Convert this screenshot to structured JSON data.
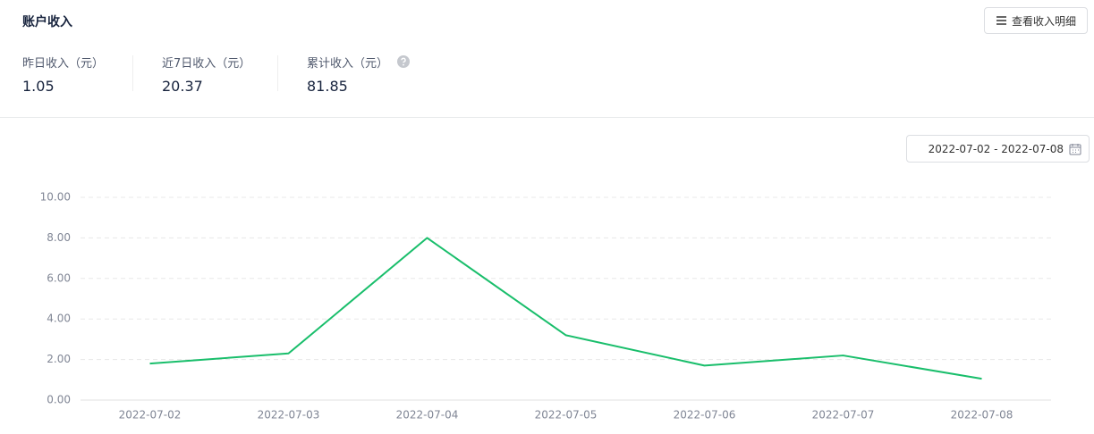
{
  "header": {
    "title": "账户收入",
    "button": "查看收入明细"
  },
  "stats": [
    {
      "label": "昨日收入（元）",
      "value": 1.05
    },
    {
      "label": "近7日收入（元）",
      "value": 20.37
    },
    {
      "label": "累计收入（元）",
      "value": 81.85
    }
  ],
  "date_range": "2022-07-02 - 2022-07-08",
  "chart_data": {
    "type": "line",
    "categories": [
      "2022-07-02",
      "2022-07-03",
      "2022-07-04",
      "2022-07-05",
      "2022-07-06",
      "2022-07-07",
      "2022-07-08"
    ],
    "values": [
      1.8,
      2.3,
      8.0,
      3.2,
      1.7,
      2.2,
      1.05
    ],
    "color": "#19be6b",
    "ylim": [
      0,
      10
    ],
    "yticks": [
      {
        "value": 0,
        "label": "0.00"
      },
      {
        "value": 2,
        "label": "2.00"
      },
      {
        "value": 4,
        "label": "4.00"
      },
      {
        "value": 6,
        "label": "6.00"
      },
      {
        "value": 8,
        "label": "8.00"
      },
      {
        "value": 10,
        "label": "10.00"
      }
    ],
    "grid": true
  }
}
